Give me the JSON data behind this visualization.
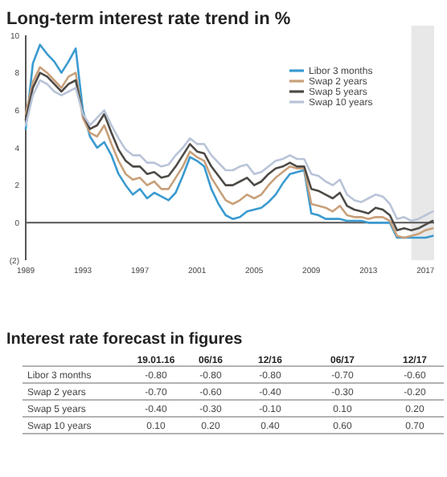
{
  "chart_data": [
    {
      "type": "line",
      "title": "Long-term interest rate trend in %",
      "x": [
        1989.0,
        1989.5,
        1990.0,
        1990.5,
        1991.0,
        1991.5,
        1992.0,
        1992.5,
        1993.0,
        1993.5,
        1994.0,
        1994.5,
        1995.0,
        1995.5,
        1996.0,
        1996.5,
        1997.0,
        1997.5,
        1998.0,
        1998.5,
        1999.0,
        1999.5,
        2000.0,
        2000.5,
        2001.0,
        2001.5,
        2002.0,
        2002.5,
        2003.0,
        2003.5,
        2004.0,
        2004.5,
        2005.0,
        2005.5,
        2006.0,
        2006.5,
        2007.0,
        2007.5,
        2008.0,
        2008.5,
        2009.0,
        2009.5,
        2010.0,
        2010.5,
        2011.0,
        2011.5,
        2012.0,
        2012.5,
        2013.0,
        2013.5,
        2014.0,
        2014.5,
        2015.0,
        2015.5,
        2016.0,
        2016.5,
        2017.0,
        2017.5
      ],
      "series": [
        {
          "name": "Libor 3 months",
          "color": "#3a9ad0",
          "values": [
            5.0,
            8.5,
            9.5,
            9.0,
            8.6,
            8.0,
            8.6,
            9.3,
            6.0,
            4.6,
            4.0,
            4.3,
            3.6,
            2.6,
            2.0,
            1.5,
            1.8,
            1.3,
            1.6,
            1.4,
            1.2,
            1.6,
            2.5,
            3.5,
            3.3,
            3.0,
            1.8,
            1.0,
            0.4,
            0.2,
            0.3,
            0.6,
            0.7,
            0.8,
            1.1,
            1.5,
            2.1,
            2.6,
            2.7,
            2.8,
            0.5,
            0.4,
            0.2,
            0.2,
            0.2,
            0.1,
            0.1,
            0.1,
            0.0,
            0.0,
            0.0,
            0.0,
            -0.8,
            -0.8,
            -0.8,
            -0.8,
            -0.8,
            -0.7
          ]
        },
        {
          "name": "Swap 2 years",
          "color": "#c8a07a",
          "values": [
            5.8,
            7.5,
            8.3,
            8.0,
            7.6,
            7.2,
            7.8,
            8.0,
            5.6,
            4.8,
            4.6,
            5.2,
            4.2,
            3.3,
            2.6,
            2.3,
            2.4,
            2.0,
            2.2,
            1.8,
            1.8,
            2.4,
            3.0,
            3.8,
            3.5,
            3.3,
            2.4,
            1.8,
            1.2,
            1.0,
            1.2,
            1.5,
            1.3,
            1.5,
            2.0,
            2.4,
            2.7,
            3.0,
            2.9,
            2.9,
            1.0,
            0.9,
            0.8,
            0.6,
            0.9,
            0.4,
            0.3,
            0.3,
            0.2,
            0.3,
            0.3,
            0.1,
            -0.7,
            -0.8,
            -0.7,
            -0.6,
            -0.4,
            -0.3
          ]
        },
        {
          "name": "Swap 5 years",
          "color": "#4d4a46",
          "values": [
            5.5,
            7.2,
            8.0,
            7.8,
            7.4,
            7.0,
            7.4,
            7.6,
            5.8,
            5.0,
            5.2,
            5.8,
            4.8,
            3.9,
            3.3,
            3.0,
            3.0,
            2.6,
            2.7,
            2.4,
            2.5,
            3.0,
            3.6,
            4.2,
            3.8,
            3.7,
            3.0,
            2.5,
            2.0,
            2.0,
            2.2,
            2.4,
            2.0,
            2.2,
            2.6,
            2.9,
            3.0,
            3.2,
            3.0,
            3.0,
            1.8,
            1.7,
            1.5,
            1.3,
            1.6,
            0.9,
            0.7,
            0.6,
            0.5,
            0.8,
            0.7,
            0.4,
            -0.4,
            -0.3,
            -0.4,
            -0.3,
            -0.1,
            0.1
          ]
        },
        {
          "name": "Swap 10 years",
          "color": "#b9c4d8",
          "values": [
            5.2,
            6.8,
            7.6,
            7.4,
            7.0,
            6.8,
            7.0,
            7.2,
            5.8,
            5.2,
            5.6,
            6.0,
            5.2,
            4.5,
            3.9,
            3.6,
            3.6,
            3.2,
            3.2,
            3.0,
            3.1,
            3.6,
            4.0,
            4.5,
            4.2,
            4.2,
            3.6,
            3.2,
            2.8,
            2.8,
            3.0,
            3.1,
            2.6,
            2.7,
            3.0,
            3.3,
            3.4,
            3.6,
            3.4,
            3.4,
            2.6,
            2.5,
            2.2,
            2.0,
            2.3,
            1.5,
            1.2,
            1.1,
            1.3,
            1.5,
            1.4,
            1.0,
            0.2,
            0.3,
            0.1,
            0.2,
            0.4,
            0.6
          ]
        }
      ],
      "xlim": [
        1989,
        2017.6
      ],
      "xticks": [
        1989,
        1993,
        1997,
        2001,
        2005,
        2009,
        2013,
        2017
      ],
      "ylim": [
        -2,
        10
      ],
      "yticks": [
        {
          "value": -2,
          "label": "(2)"
        },
        0,
        2,
        4,
        6,
        8,
        10
      ],
      "bands": [
        {
          "axis": "x",
          "from": 2016,
          "to": 2017.6,
          "color": "#e8e8e8"
        }
      ],
      "ref_lines": [
        {
          "axis": "y",
          "value": 0,
          "color": "#555555"
        }
      ],
      "legend": "top right"
    },
    {
      "type": "heatmap",
      "title": "Interest rate forecast in figures",
      "categories": [
        "19.01.16",
        "06/16",
        "12/16",
        "06/17",
        "12/17"
      ],
      "y_categories": [
        "Libor 3 months",
        "Swap 2 years",
        "Swap 5 years",
        "Swap 10 years"
      ],
      "cells": [
        [
          -0.8,
          -0.8,
          -0.8,
          -0.7,
          -0.6
        ],
        [
          -0.7,
          -0.6,
          -0.4,
          -0.3,
          -0.2
        ],
        [
          -0.4,
          -0.3,
          -0.1,
          0.1,
          0.2
        ],
        [
          0.1,
          0.2,
          0.4,
          0.6,
          0.7
        ]
      ],
      "cell_labels": [
        [
          "-0.80",
          "-0.80",
          "-0.80",
          "-0.70",
          "-0.60"
        ],
        [
          "-0.70",
          "-0.60",
          "-0.40",
          "-0.30",
          "-0.20"
        ],
        [
          "-0.40",
          "-0.30",
          "-0.10",
          "0.10",
          "0.20"
        ],
        [
          "0.10",
          "0.20",
          "0.40",
          "0.60",
          "0.70"
        ]
      ]
    }
  ]
}
